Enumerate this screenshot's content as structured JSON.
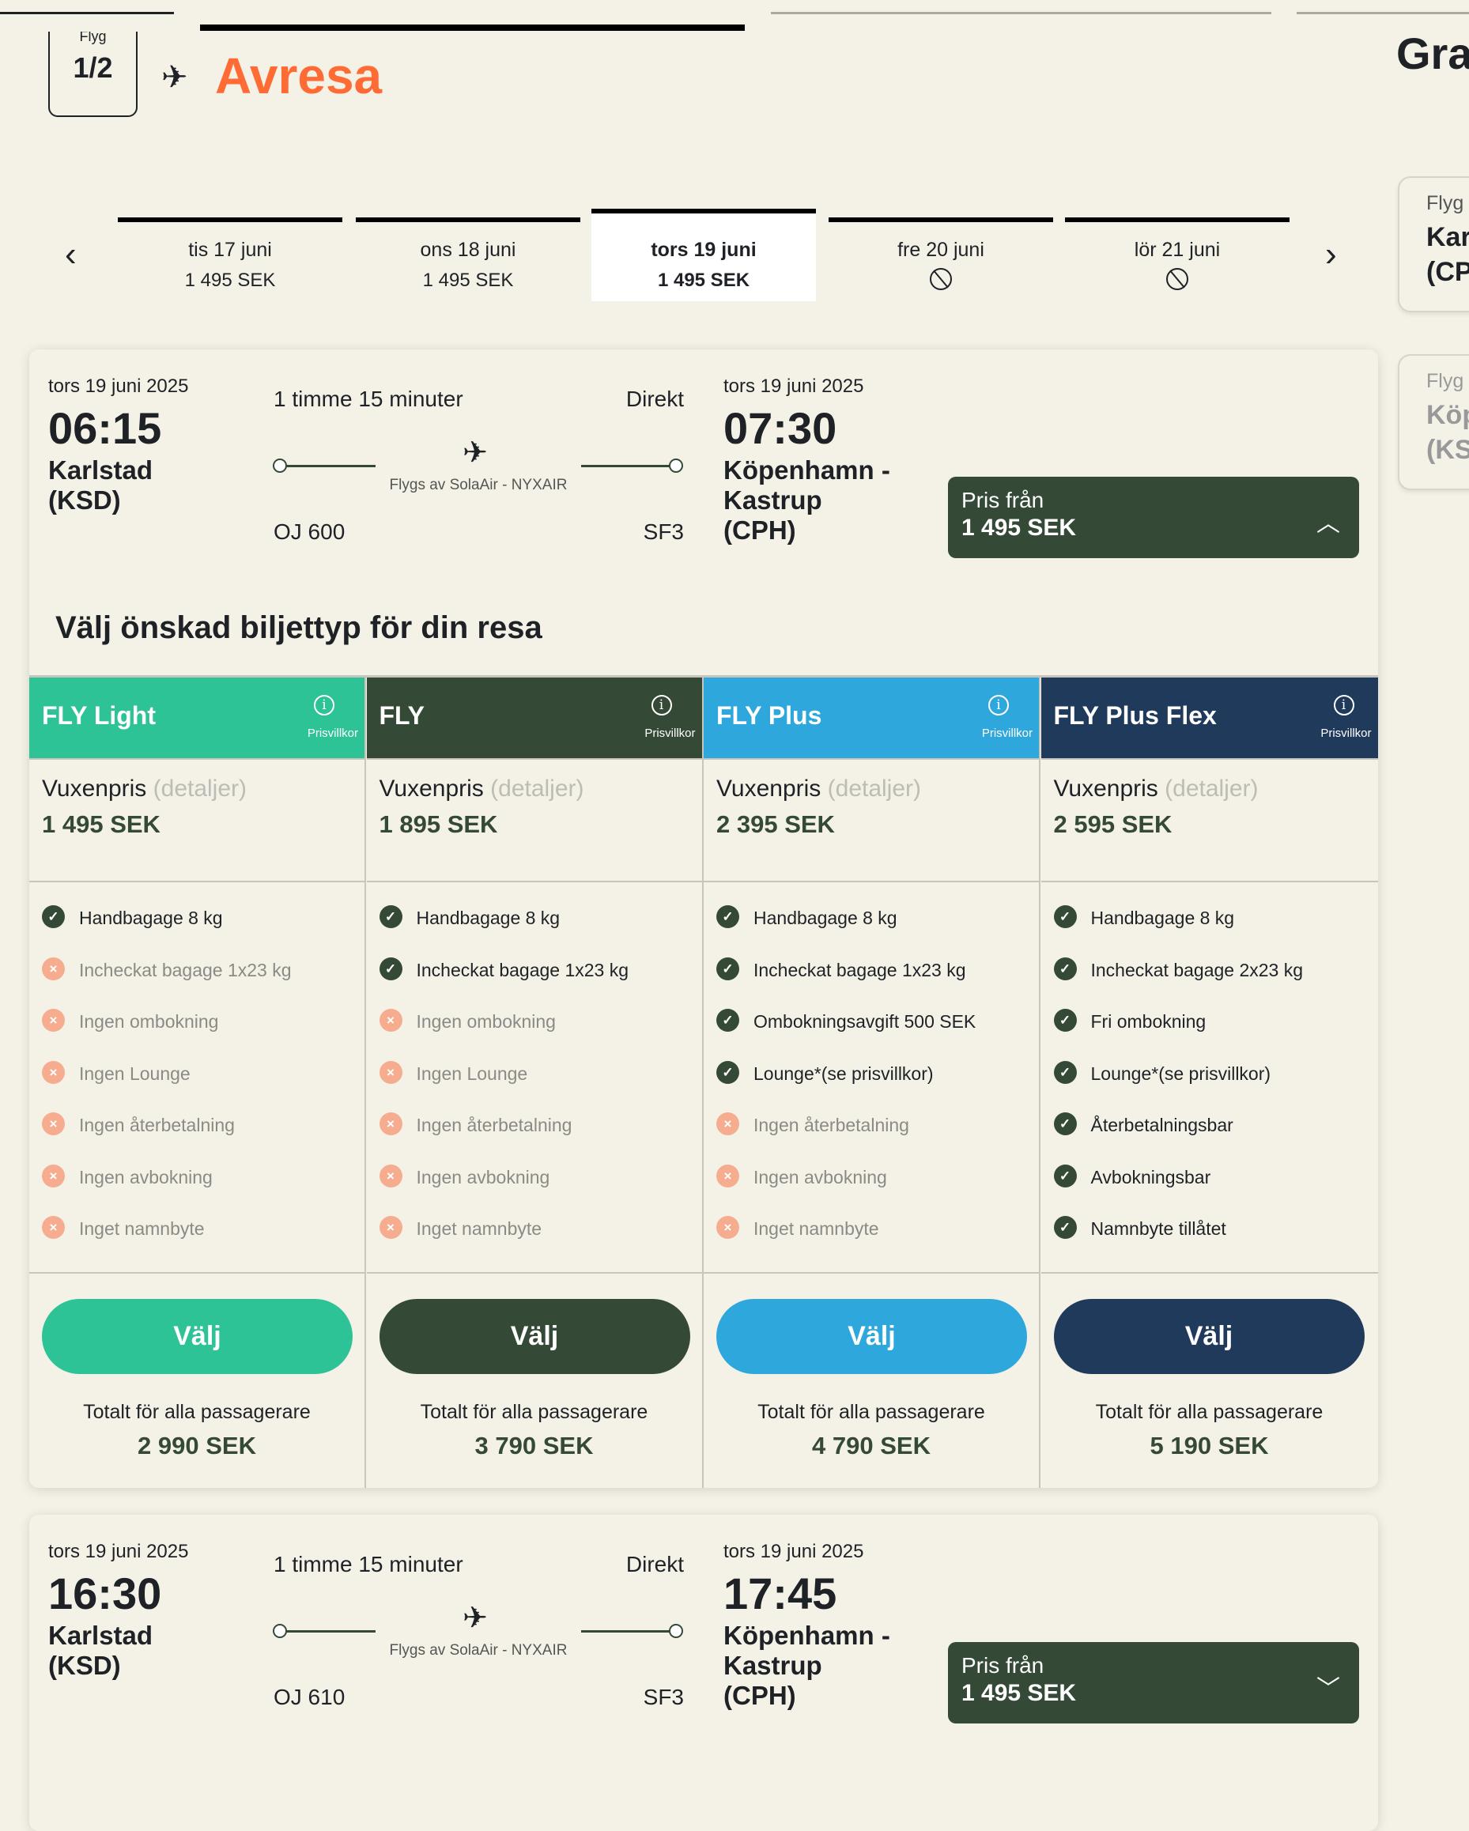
{
  "header": {
    "flight_label": "Flyg",
    "flight_index": "1/2",
    "title": "Avresa",
    "right_title_fragment": "Gra"
  },
  "date_tabs": [
    {
      "date": "tis 17 juni",
      "price": "1 495 SEK",
      "available": true,
      "selected": false
    },
    {
      "date": "ons 18 juni",
      "price": "1 495 SEK",
      "available": true,
      "selected": false
    },
    {
      "date": "tors 19 juni",
      "price": "1 495 SEK",
      "available": true,
      "selected": true
    },
    {
      "date": "fre 20 juni",
      "price": null,
      "available": false,
      "selected": false
    },
    {
      "date": "lör 21 juni",
      "price": null,
      "available": false,
      "selected": false
    }
  ],
  "side_cards": [
    {
      "label": "Flyg",
      "line1": "Kar",
      "line2": "(CP",
      "dimmed": false
    },
    {
      "label": "Flyg",
      "line1": "Köp",
      "line2": "(KS",
      "dimmed": true
    }
  ],
  "flights": [
    {
      "dep_date": "tors 19 juni 2025",
      "dep_time": "06:15",
      "dep_city": "Karlstad",
      "dep_code": "(KSD)",
      "duration": "1 timme 15 minuter",
      "stops": "Direkt",
      "operator": "Flygs av SolaAir - NYXAIR",
      "flight_no": "OJ 600",
      "aircraft": "SF3",
      "arr_date": "tors 19 juni 2025",
      "arr_time": "07:30",
      "arr_city1": "Köpenhamn -",
      "arr_city2": "Kastrup",
      "arr_code": "(CPH)",
      "price_label": "Pris från",
      "price": "1 495 SEK",
      "expanded": true
    },
    {
      "dep_date": "tors 19 juni 2025",
      "dep_time": "16:30",
      "dep_city": "Karlstad",
      "dep_code": "(KSD)",
      "duration": "1 timme 15 minuter",
      "stops": "Direkt",
      "operator": "Flygs av SolaAir - NYXAIR",
      "flight_no": "OJ 610",
      "aircraft": "SF3",
      "arr_date": "tors 19 juni 2025",
      "arr_time": "17:45",
      "arr_city1": "Köpenhamn -",
      "arr_city2": "Kastrup",
      "arr_code": "(CPH)",
      "price_label": "Pris från",
      "price": "1 495 SEK",
      "expanded": false
    }
  ],
  "fare_heading": "Välj önskad biljettyp för din resa",
  "fares": [
    {
      "name": "FLY Light",
      "color": "#2DC397",
      "terms": "Prisvillkor",
      "adult_label": "Vuxenpris",
      "details": "(detaljer)",
      "price": "1 495 SEK",
      "features": [
        {
          "text": "Handbagage 8 kg",
          "included": true
        },
        {
          "text": "Incheckat bagage 1x23 kg",
          "included": false
        },
        {
          "text": "Ingen ombokning",
          "included": false
        },
        {
          "text": "Ingen Lounge",
          "included": false
        },
        {
          "text": "Ingen återbetalning",
          "included": false
        },
        {
          "text": "Ingen avbokning",
          "included": false
        },
        {
          "text": "Inget namnbyte",
          "included": false
        }
      ],
      "select": "Välj",
      "total_label": "Totalt för alla passagerare",
      "total": "2 990 SEK"
    },
    {
      "name": "FLY",
      "color": "#344A36",
      "terms": "Prisvillkor",
      "adult_label": "Vuxenpris",
      "details": "(detaljer)",
      "price": "1 895 SEK",
      "features": [
        {
          "text": "Handbagage 8 kg",
          "included": true
        },
        {
          "text": "Incheckat bagage 1x23 kg",
          "included": true
        },
        {
          "text": "Ingen ombokning",
          "included": false
        },
        {
          "text": "Ingen Lounge",
          "included": false
        },
        {
          "text": "Ingen återbetalning",
          "included": false
        },
        {
          "text": "Ingen avbokning",
          "included": false
        },
        {
          "text": "Inget namnbyte",
          "included": false
        }
      ],
      "select": "Välj",
      "total_label": "Totalt för alla passagerare",
      "total": "3 790 SEK"
    },
    {
      "name": "FLY Plus",
      "color": "#2EA8DC",
      "terms": "Prisvillkor",
      "adult_label": "Vuxenpris",
      "details": "(detaljer)",
      "price": "2 395 SEK",
      "features": [
        {
          "text": "Handbagage 8 kg",
          "included": true
        },
        {
          "text": "Incheckat bagage 1x23 kg",
          "included": true
        },
        {
          "text": "Ombokningsavgift 500 SEK",
          "included": true
        },
        {
          "text": "Lounge*(se prisvillkor)",
          "included": true
        },
        {
          "text": "Ingen återbetalning",
          "included": false
        },
        {
          "text": "Ingen avbokning",
          "included": false
        },
        {
          "text": "Inget namnbyte",
          "included": false
        }
      ],
      "select": "Välj",
      "total_label": "Totalt för alla passagerare",
      "total": "4 790 SEK"
    },
    {
      "name": "FLY Plus Flex",
      "color": "#1F3A5A",
      "terms": "Prisvillkor",
      "adult_label": "Vuxenpris",
      "details": "(detaljer)",
      "price": "2 595 SEK",
      "features": [
        {
          "text": "Handbagage 8 kg",
          "included": true
        },
        {
          "text": "Incheckat bagage 2x23 kg",
          "included": true
        },
        {
          "text": "Fri ombokning",
          "included": true
        },
        {
          "text": "Lounge*(se prisvillkor)",
          "included": true
        },
        {
          "text": "Återbetalningsbar",
          "included": true
        },
        {
          "text": "Avbokningsbar",
          "included": true
        },
        {
          "text": "Namnbyte tillåtet",
          "included": true
        }
      ],
      "select": "Välj",
      "total_label": "Totalt för alla passagerare",
      "total": "5 190 SEK"
    }
  ],
  "colors": {
    "background": "#F4F2E6",
    "accent": "#FF6B35",
    "dark_green": "#344A36",
    "excluded": "#F6AD8F"
  }
}
